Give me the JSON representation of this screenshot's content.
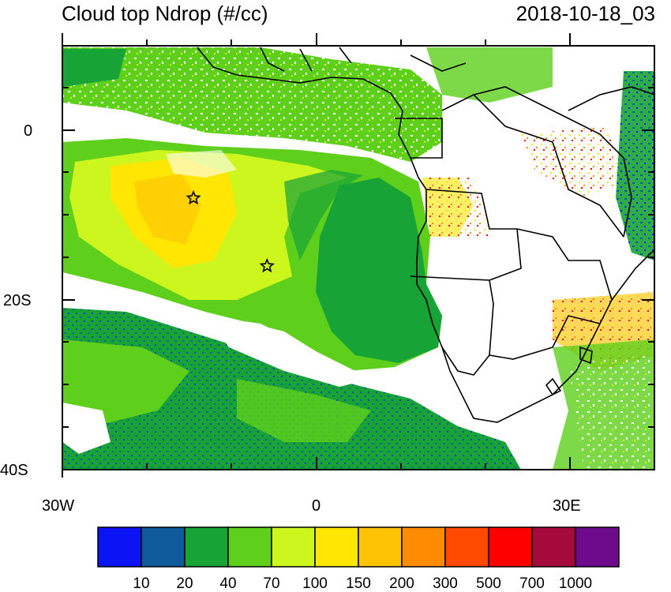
{
  "title_left": "Cloud top Ndrop (#/cc)",
  "title_right": "2018-10-18_03",
  "y_tick_labels": [
    "0",
    "20S",
    "40S"
  ],
  "x_tick_labels": [
    "30W",
    "0",
    "30E"
  ],
  "colorbar": {
    "colors": [
      "#0a14f5",
      "#0f5a9b",
      "#17a336",
      "#5ed01c",
      "#cdf51e",
      "#ffe603",
      "#ffc305",
      "#ff8c00",
      "#ff4a00",
      "#ff0000",
      "#a50a3c",
      "#6e0a8c"
    ],
    "labels": [
      "10",
      "20",
      "40",
      "70",
      "100",
      "150",
      "200",
      "300",
      "500",
      "700",
      "1000"
    ]
  },
  "markers": [
    {
      "name": "star-marker-north",
      "lon": -14.5,
      "lat": -8
    },
    {
      "name": "star-marker-south",
      "lon": -5.8,
      "lat": -16
    }
  ]
}
